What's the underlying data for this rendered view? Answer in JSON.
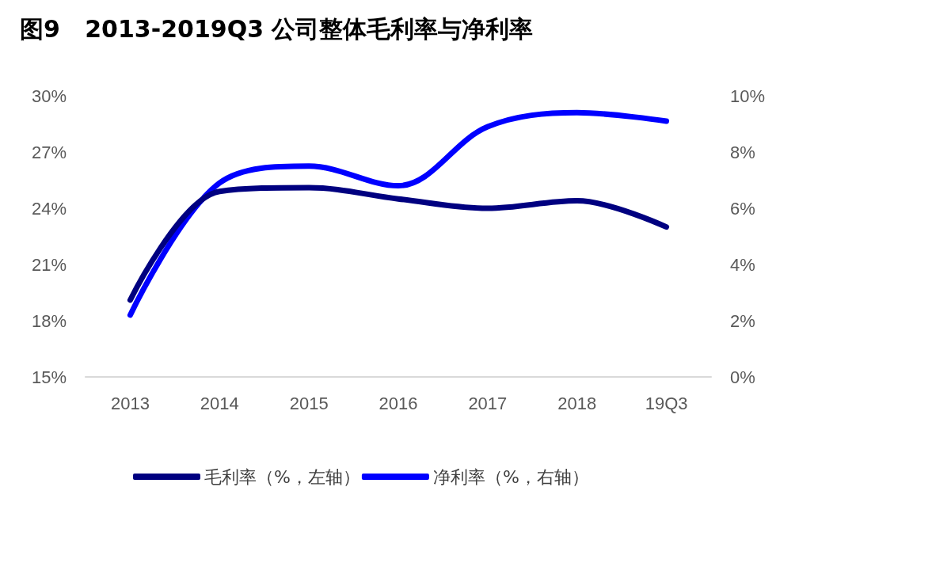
{
  "chart_data": {
    "type": "line",
    "title": "图9   2013-2019Q3 公司整体毛利率与净利率",
    "categories": [
      "2013",
      "2014",
      "2015",
      "2016",
      "2017",
      "2018",
      "19Q3"
    ],
    "series": [
      {
        "name": "毛利率（%，左轴）",
        "color": "#000080",
        "values": [
          19.1,
          24.9,
          25.1,
          24.5,
          24.0,
          24.4,
          23.0
        ]
      },
      {
        "name": "净利率（%，右轴）",
        "color": "#0000ff",
        "axis": "y2",
        "values": [
          2.2,
          6.9,
          7.5,
          6.8,
          8.9,
          9.4,
          9.1
        ]
      }
    ],
    "ylim": [
      15,
      30
    ],
    "yticks": [
      {
        "value": 15,
        "label": "15%"
      },
      {
        "value": 18,
        "label": "18%"
      },
      {
        "value": 21,
        "label": "21%"
      },
      {
        "value": 24,
        "label": "24%"
      },
      {
        "value": 27,
        "label": "27%"
      },
      {
        "value": 30,
        "label": "30%"
      }
    ],
    "y2lim": [
      0,
      10
    ],
    "y2ticks": [
      {
        "value": 0,
        "label": "0%"
      },
      {
        "value": 2,
        "label": "2%"
      },
      {
        "value": 4,
        "label": "4%"
      },
      {
        "value": 6,
        "label": "6%"
      },
      {
        "value": 8,
        "label": "8%"
      },
      {
        "value": 10,
        "label": "10%"
      }
    ],
    "grid": false,
    "legend": "bottom",
    "marker": "none",
    "line_style": "solid"
  }
}
